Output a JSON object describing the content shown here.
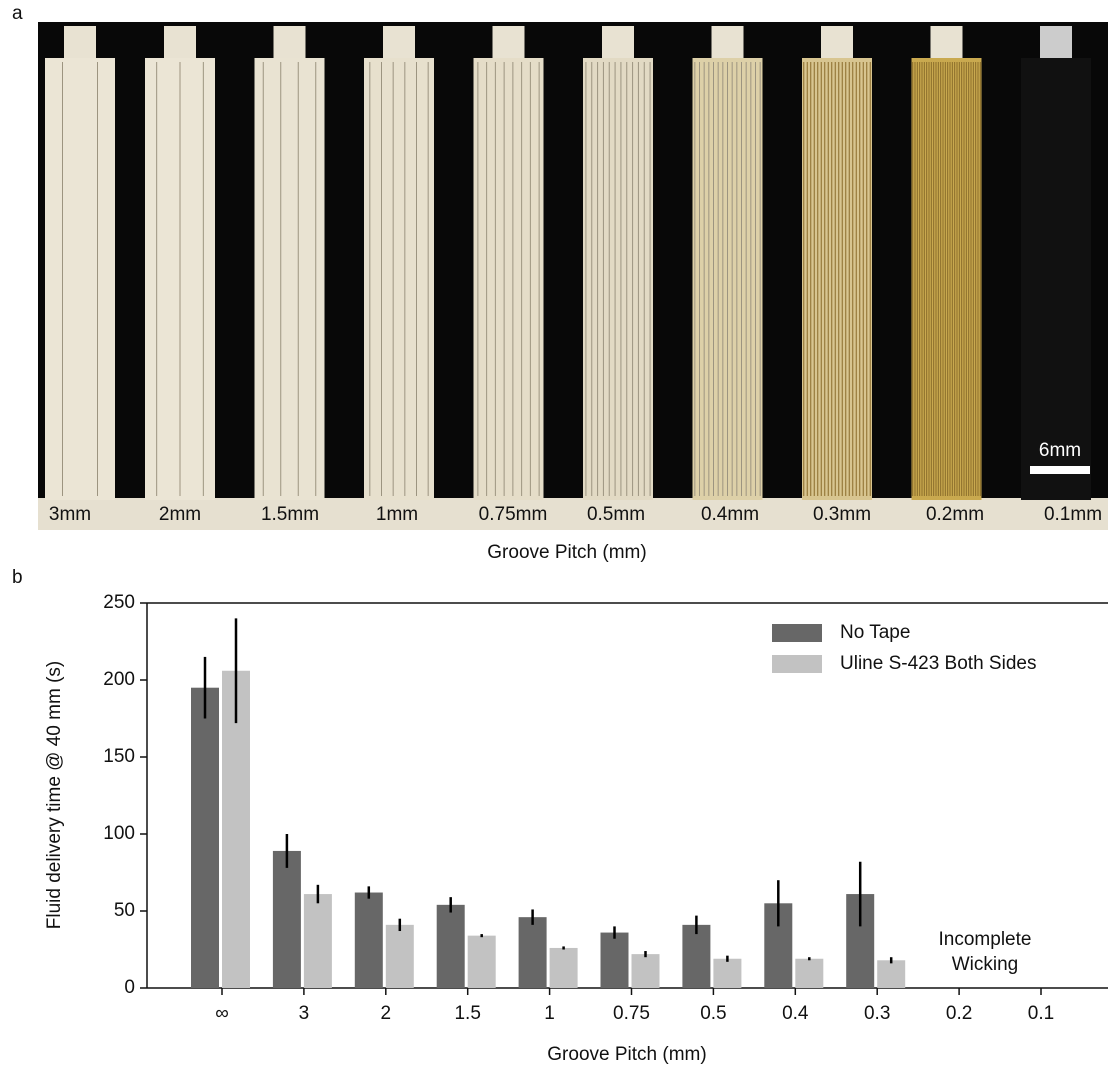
{
  "panel_a": {
    "letter": "a",
    "strip_labels": [
      "3mm",
      "2mm",
      "1.5mm",
      "1mm",
      "0.75mm",
      "0.5mm",
      "0.4mm",
      "0.3mm",
      "0.2mm",
      "0.1mm"
    ],
    "scale_bar": "6mm",
    "axis_label": "Groove Pitch (mm)"
  },
  "chart_data": {
    "type": "bar",
    "letter": "b",
    "x_label": "Groove Pitch (mm)",
    "y_label": "Fluid delivery time @ 40 mm (s)",
    "categories": [
      "∞",
      "3",
      "2",
      "1.5",
      "1",
      "0.75",
      "0.5",
      "0.4",
      "0.3",
      "0.2",
      "0.1"
    ],
    "series": [
      {
        "name": "No Tape",
        "color": "#676767",
        "values": [
          195,
          89,
          62,
          54,
          46,
          36,
          41,
          55,
          61,
          null,
          null
        ],
        "errors": [
          20,
          11,
          4,
          5,
          5,
          4,
          6,
          15,
          21,
          null,
          null
        ]
      },
      {
        "name": "Uline S-423 Both Sides",
        "color": "#c2c2c2",
        "values": [
          206,
          61,
          41,
          34,
          26,
          22,
          19,
          19,
          18,
          null,
          null
        ],
        "errors": [
          34,
          6,
          4,
          1,
          1,
          2,
          2,
          1,
          2,
          null,
          null
        ]
      }
    ],
    "annotation": [
      "Incomplete",
      "Wicking"
    ],
    "ylim": [
      0,
      250
    ],
    "yticks": [
      0,
      50,
      100,
      150,
      200,
      250
    ],
    "legend": "upper right"
  }
}
